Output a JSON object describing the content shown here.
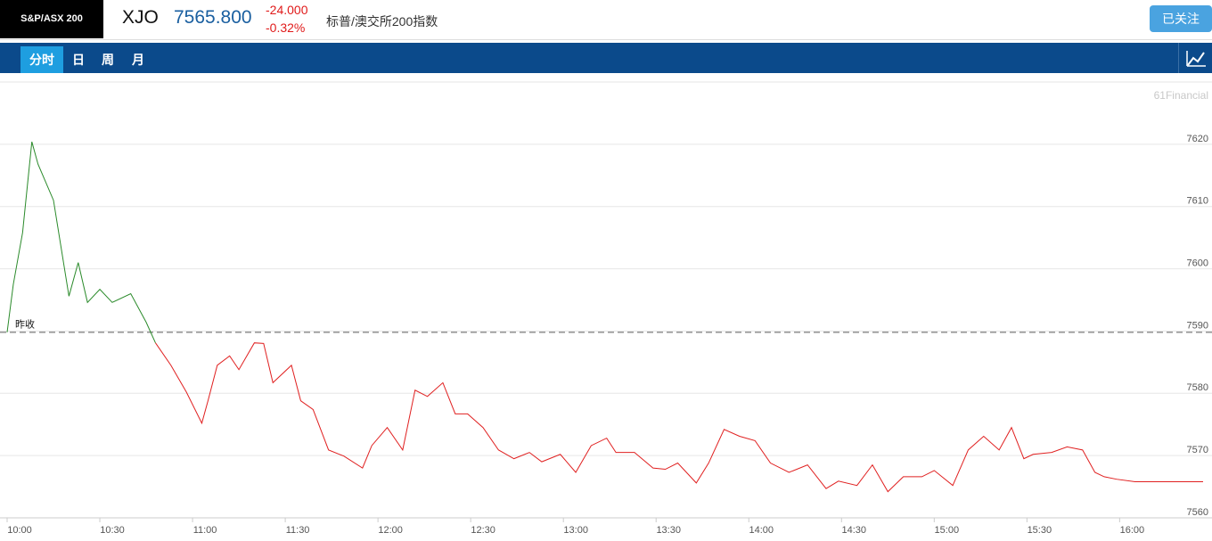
{
  "header": {
    "index_name": "S&P/ASX 200",
    "symbol": "XJO",
    "price": "7565.800",
    "change": "-24.000",
    "change_pct": "-0.32%",
    "name_cn": "标普/澳交所200指数",
    "follow_button": "已关注"
  },
  "tabs": [
    "分时",
    "日",
    "周",
    "月"
  ],
  "active_tab": 0,
  "chart_data": {
    "type": "line",
    "watermark": "61Financial",
    "x": [
      "10:00",
      "10:02",
      "10:05",
      "10:08",
      "10:10",
      "10:15",
      "10:20",
      "10:23",
      "10:26",
      "10:30",
      "10:34",
      "10:40",
      "10:45",
      "10:48",
      "10:53",
      "10:58",
      "11:03",
      "11:05",
      "11:08",
      "11:12",
      "11:15",
      "11:20",
      "11:23",
      "11:26",
      "11:32",
      "11:35",
      "11:39",
      "11:44",
      "11:49",
      "11:55",
      "11:58",
      "12:03",
      "12:08",
      "12:12",
      "12:16",
      "12:21",
      "12:25",
      "12:29",
      "12:34",
      "12:39",
      "12:44",
      "12:49",
      "12:53",
      "12:59",
      "13:04",
      "13:09",
      "13:14",
      "13:17",
      "13:23",
      "13:29",
      "13:33",
      "13:37",
      "13:43",
      "13:47",
      "13:52",
      "13:57",
      "14:02",
      "14:07",
      "14:13",
      "14:19",
      "14:25",
      "14:29",
      "14:35",
      "14:40",
      "14:45",
      "14:50",
      "14:56",
      "15:00",
      "15:06",
      "15:11",
      "15:16",
      "15:21",
      "15:25",
      "15:29",
      "15:32",
      "15:38",
      "15:43",
      "15:48",
      "15:52",
      "15:55",
      "15:59",
      "16:05",
      "16:12",
      "16:27"
    ],
    "series": [
      {
        "color_up": "#2a8a2a",
        "color_down": "#e02020",
        "values": [
          7589.8,
          7597.5,
          7605.8,
          7620.4,
          7616.8,
          7611,
          7595.6,
          7601,
          7594.6,
          7596.7,
          7594.6,
          7596,
          7591.4,
          7588.1,
          7584.5,
          7580.2,
          7575.2,
          7578.8,
          7584.5,
          7586,
          7583.8,
          7588.1,
          7588,
          7581.7,
          7584.5,
          7578.8,
          7577.4,
          7570.9,
          7569.9,
          7568,
          7571.6,
          7574.5,
          7570.9,
          7580.5,
          7579.5,
          7581.7,
          7576.7,
          7576.7,
          7574.5,
          7570.9,
          7569.5,
          7570.5,
          7569,
          7570.2,
          7567.3,
          7571.6,
          7572.8,
          7570.5,
          7570.5,
          7568,
          7567.8,
          7568.8,
          7565.6,
          7568.8,
          7574.2,
          7573.1,
          7572.4,
          7568.8,
          7567.3,
          7568.5,
          7564.7,
          7565.9,
          7565.2,
          7568.5,
          7564.2,
          7566.6,
          7566.6,
          7567.6,
          7565.2,
          7570.9,
          7573.1,
          7570.9,
          7574.5,
          7569.5,
          7570.2,
          7570.5,
          7571.4,
          7570.9,
          7567.3,
          7566.6,
          7566.2,
          7565.8,
          7565.8,
          7565.8
        ]
      }
    ],
    "reference": {
      "label": "昨收",
      "value": 7589.8
    },
    "xlim": [
      "10:00",
      "16:27"
    ],
    "xticks": [
      "10:00",
      "10:30",
      "11:00",
      "11:30",
      "12:00",
      "12:30",
      "13:00",
      "13:30",
      "14:00",
      "14:30",
      "15:00",
      "15:30",
      "16:00"
    ],
    "ylim": [
      7560,
      7630
    ],
    "yticks": [
      7560,
      7570,
      7580,
      7590,
      7600,
      7610,
      7620
    ],
    "grid": true
  }
}
